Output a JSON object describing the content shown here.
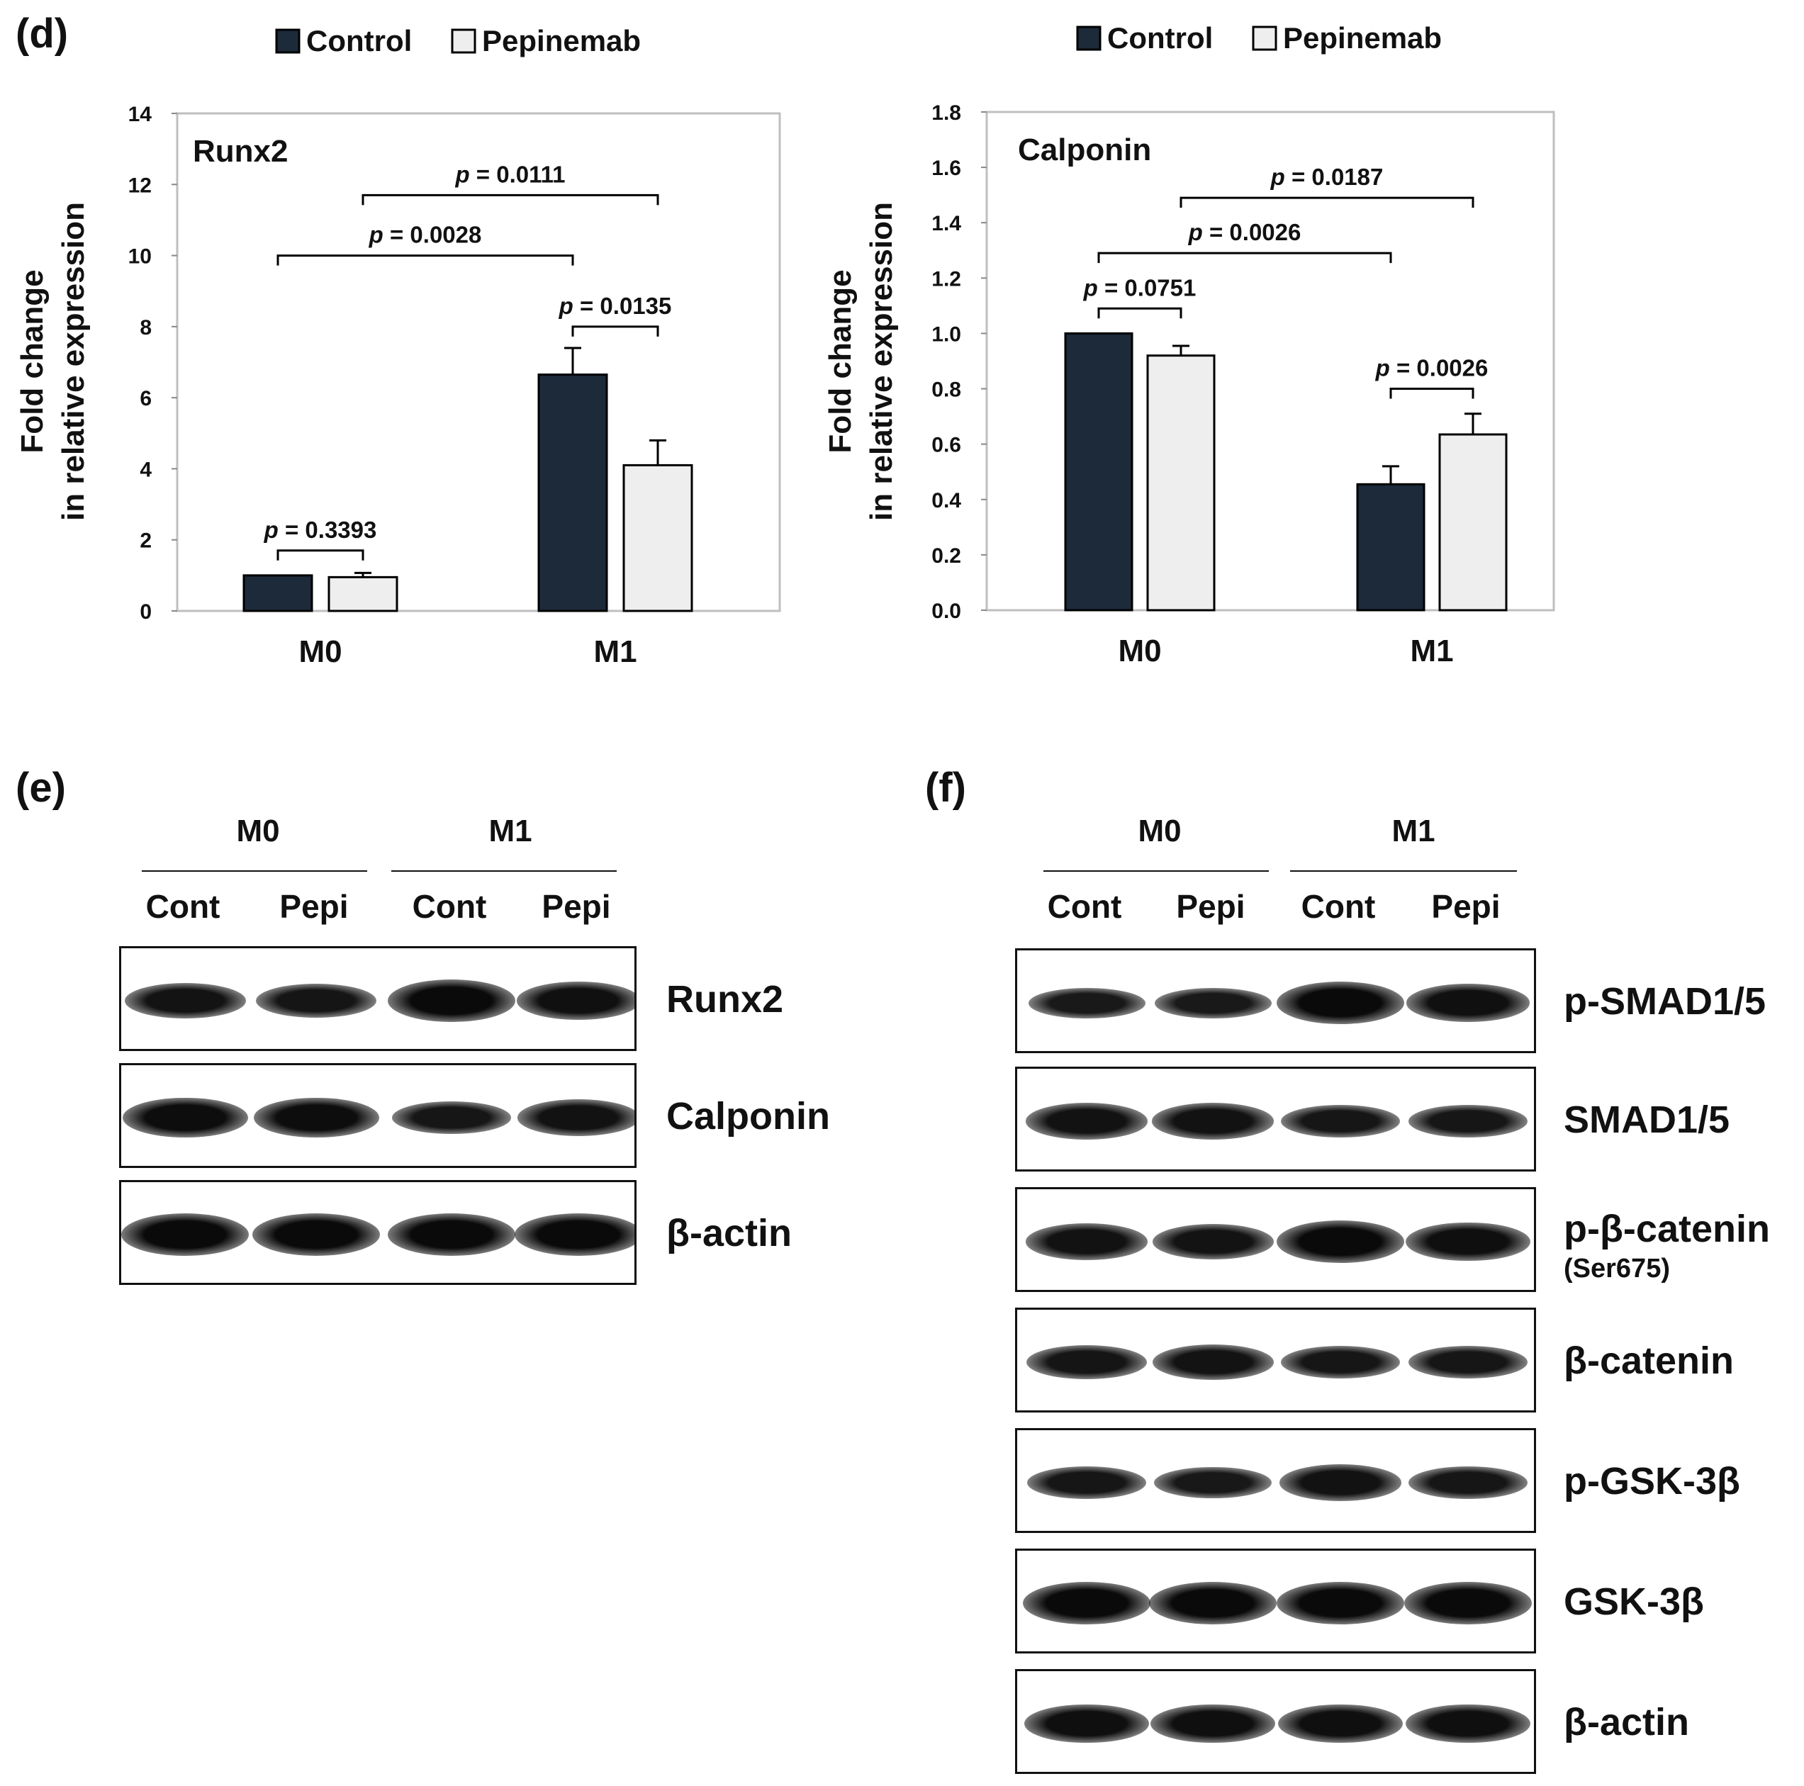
{
  "panels": {
    "d": "(d)",
    "e": "(e)",
    "f": "(f)"
  },
  "colors": {
    "control": "#1c2a3a",
    "pepinemab": "#eeeeee",
    "bar_edge": "#000000",
    "frame": "#bfbfbf"
  },
  "chart_data": [
    {
      "type": "bar",
      "title": "Runx2",
      "ylabel_lines": [
        "Fold change",
        "in relative expression"
      ],
      "categories": [
        "M0",
        "M1"
      ],
      "series": [
        {
          "name": "Control",
          "values": [
            1.0,
            6.65
          ],
          "errors": [
            0,
            0.75
          ]
        },
        {
          "name": "Pepinemab",
          "values": [
            0.95,
            4.1
          ],
          "errors": [
            0.12,
            0.7
          ]
        }
      ],
      "ylim": [
        0,
        14
      ],
      "ytick_labels": [
        "0",
        "2",
        "4",
        "6",
        "8",
        "10",
        "12",
        "14"
      ],
      "legend": {
        "position": "top",
        "entries": [
          "Control",
          "Pepinemab"
        ]
      },
      "annotations": [
        {
          "from": [
            0,
            0
          ],
          "to": [
            0,
            1
          ],
          "y": 1.7,
          "p": "0.3393"
        },
        {
          "from": [
            1,
            0
          ],
          "to": [
            1,
            1
          ],
          "y": 8.0,
          "p": "0.0135"
        },
        {
          "from": [
            0,
            0
          ],
          "to": [
            1,
            0
          ],
          "y": 10.0,
          "p": "0.0028"
        },
        {
          "from": [
            0,
            1
          ],
          "to": [
            1,
            1
          ],
          "y": 11.7,
          "p": "0.0111"
        }
      ]
    },
    {
      "type": "bar",
      "title": "Calponin",
      "ylabel_lines": [
        "Fold change",
        "in relative expression"
      ],
      "categories": [
        "M0",
        "M1"
      ],
      "series": [
        {
          "name": "Control",
          "values": [
            1.0,
            0.455
          ],
          "errors": [
            0,
            0.065
          ]
        },
        {
          "name": "Pepinemab",
          "values": [
            0.92,
            0.635
          ],
          "errors": [
            0.035,
            0.075
          ]
        }
      ],
      "ylim": [
        0,
        1.8
      ],
      "ytick_labels": [
        "0.0",
        "0.2",
        "0.4",
        "0.6",
        "0.8",
        "1.0",
        "1.2",
        "1.4",
        "1.6",
        "1.8"
      ],
      "legend": {
        "position": "top",
        "entries": [
          "Control",
          "Pepinemab"
        ]
      },
      "annotations": [
        {
          "from": [
            0,
            0
          ],
          "to": [
            0,
            1
          ],
          "y": 1.09,
          "p": "0.0751"
        },
        {
          "from": [
            1,
            0
          ],
          "to": [
            1,
            1
          ],
          "y": 0.8,
          "p": "0.0026"
        },
        {
          "from": [
            0,
            0
          ],
          "to": [
            1,
            0
          ],
          "y": 1.29,
          "p": "0.0026"
        },
        {
          "from": [
            0,
            1
          ],
          "to": [
            1,
            1
          ],
          "y": 1.49,
          "p": "0.0187"
        }
      ]
    }
  ],
  "p_prefix": "p",
  "p_equals": " = ",
  "blots": {
    "e": {
      "groups": [
        "M0",
        "M1"
      ],
      "lanes": [
        "Cont",
        "Pepi",
        "Cont",
        "Pepi"
      ],
      "rows": [
        {
          "label": "Runx2",
          "intensity": [
            0.7,
            0.65,
            1.0,
            0.8
          ]
        },
        {
          "label": "Calponin",
          "intensity": [
            0.9,
            0.9,
            0.6,
            0.75
          ]
        },
        {
          "label": "β-actin",
          "intensity": [
            1.0,
            1.0,
            1.0,
            1.0
          ]
        }
      ]
    },
    "f": {
      "groups": [
        "M0",
        "M1"
      ],
      "lanes": [
        "Cont",
        "Pepi",
        "Cont",
        "Pepi"
      ],
      "rows": [
        {
          "label": "p-SMAD1/5",
          "sublabel": "",
          "intensity": [
            0.5,
            0.5,
            1.0,
            0.8
          ]
        },
        {
          "label": "SMAD1/5",
          "sublabel": "",
          "intensity": [
            0.75,
            0.75,
            0.6,
            0.6
          ]
        },
        {
          "label": "p-β-catenin",
          "sublabel": "(Ser675)",
          "intensity": [
            0.75,
            0.7,
            1.0,
            0.85
          ]
        },
        {
          "label": "β-catenin",
          "sublabel": "",
          "intensity": [
            0.65,
            0.7,
            0.6,
            0.6
          ]
        },
        {
          "label": "p-GSK-3β",
          "sublabel": "",
          "intensity": [
            0.6,
            0.55,
            0.75,
            0.6
          ]
        },
        {
          "label": "GSK-3β",
          "sublabel": "",
          "intensity": [
            1.0,
            1.0,
            1.0,
            1.0
          ]
        },
        {
          "label": "β-actin",
          "sublabel": "",
          "intensity": [
            0.85,
            0.85,
            0.85,
            0.85
          ]
        }
      ]
    }
  }
}
